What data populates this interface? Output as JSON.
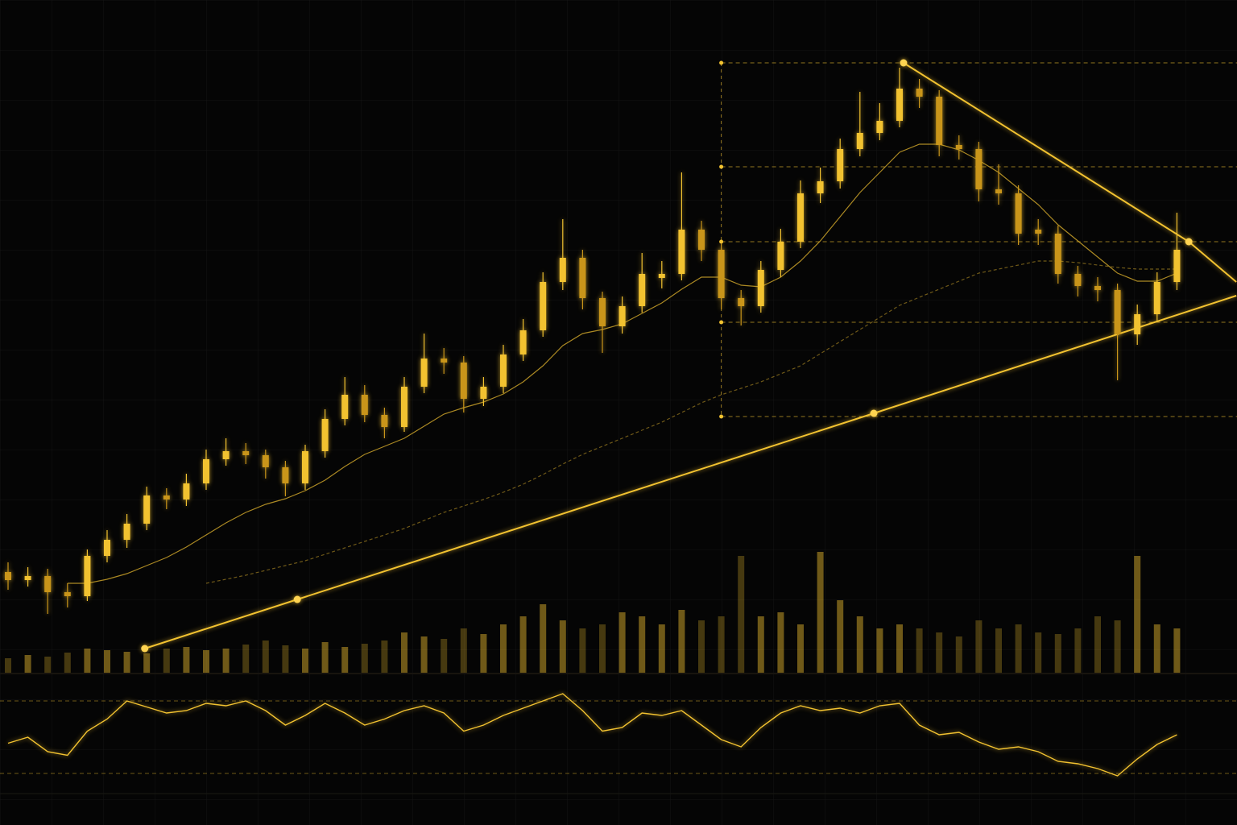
{
  "chart_data": {
    "type": "candlestick",
    "color": "#f2c230",
    "down_color": "#c9951a",
    "grid": true,
    "ylim": [
      0,
      1024
    ],
    "open": [
      314,
      304,
      309,
      289,
      284,
      334,
      354,
      374,
      409,
      404,
      424,
      454,
      464,
      459,
      444,
      424,
      464,
      504,
      534,
      509,
      494,
      544,
      579,
      574,
      529,
      544,
      584,
      614,
      674,
      704,
      654,
      619,
      644,
      679,
      684,
      739,
      714,
      654,
      644,
      689,
      724,
      784,
      799,
      839,
      859,
      874,
      914,
      904,
      844,
      839,
      789,
      784,
      739,
      734,
      684,
      669,
      664,
      609,
      634,
      674
    ],
    "high": [
      326,
      320,
      318,
      300,
      342,
      366,
      386,
      420,
      418,
      436,
      466,
      480,
      474,
      466,
      452,
      472,
      516,
      556,
      546,
      518,
      556,
      610,
      592,
      582,
      556,
      596,
      628,
      686,
      752,
      714,
      662,
      656,
      710,
      700,
      810,
      750,
      722,
      664,
      700,
      740,
      800,
      816,
      852,
      910,
      896,
      940,
      926,
      912,
      856,
      848,
      820,
      794,
      752,
      744,
      694,
      680,
      672,
      646,
      686,
      760
    ],
    "low": [
      292,
      296,
      262,
      270,
      278,
      326,
      344,
      366,
      392,
      396,
      416,
      446,
      448,
      430,
      408,
      416,
      456,
      496,
      500,
      480,
      488,
      536,
      560,
      512,
      520,
      536,
      576,
      606,
      664,
      640,
      586,
      610,
      636,
      666,
      676,
      700,
      640,
      620,
      636,
      680,
      716,
      772,
      790,
      830,
      850,
      866,
      890,
      830,
      826,
      774,
      770,
      720,
      720,
      672,
      656,
      650,
      552,
      596,
      626,
      664
    ],
    "close": [
      304,
      309,
      289,
      284,
      334,
      354,
      374,
      409,
      404,
      424,
      454,
      464,
      459,
      444,
      424,
      464,
      504,
      534,
      509,
      494,
      544,
      579,
      574,
      529,
      544,
      584,
      614,
      674,
      704,
      654,
      619,
      644,
      684,
      684,
      739,
      714,
      654,
      644,
      689,
      724,
      784,
      799,
      839,
      859,
      874,
      914,
      904,
      844,
      839,
      789,
      784,
      734,
      734,
      684,
      669,
      664,
      609,
      634,
      674,
      714
    ],
    "moving_averages": [
      {
        "style": "solid",
        "values": [
          null,
          null,
          null,
          300,
          300,
          305,
          312,
          322,
          332,
          345,
          360,
          375,
          388,
          398,
          405,
          415,
          428,
          445,
          460,
          470,
          480,
          495,
          510,
          518,
          525,
          535,
          550,
          570,
          595,
          610,
          615,
          622,
          635,
          648,
          665,
          680,
          680,
          670,
          668,
          680,
          700,
          725,
          755,
          785,
          810,
          835,
          845,
          845,
          838,
          825,
          810,
          790,
          770,
          745,
          725,
          705,
          685,
          675,
          675,
          685
        ]
      },
      {
        "style": "dashed",
        "values": [
          null,
          null,
          null,
          null,
          null,
          null,
          null,
          null,
          null,
          null,
          300,
          305,
          310,
          316,
          322,
          328,
          336,
          344,
          352,
          360,
          368,
          378,
          388,
          396,
          404,
          413,
          423,
          435,
          448,
          460,
          470,
          480,
          490,
          500,
          512,
          524,
          534,
          542,
          550,
          560,
          570,
          585,
          600,
          615,
          630,
          645,
          655,
          665,
          675,
          685,
          690,
          695,
          700,
          700,
          698,
          695,
          692,
          690,
          690,
          690
        ]
      }
    ],
    "trendlines": [
      {
        "x": [
          6.9,
          14.6,
          43.7,
          62
        ],
        "y": [
          219,
          280,
          511,
          657
        ]
      },
      {
        "x": [
          45.2,
          59.6,
          62
        ],
        "y": [
          946,
          724,
          674
        ]
      }
    ],
    "levels": [
      946,
      817,
      724,
      624,
      507
    ],
    "levels_start": 36,
    "volume": [
      18,
      22,
      20,
      25,
      30,
      28,
      26,
      24,
      30,
      32,
      28,
      30,
      35,
      40,
      34,
      30,
      38,
      32,
      36,
      40,
      50,
      45,
      42,
      55,
      48,
      60,
      70,
      85,
      65,
      55,
      60,
      75,
      70,
      60,
      78,
      65,
      70,
      145,
      70,
      75,
      60,
      150,
      90,
      70,
      55,
      60,
      55,
      50,
      45,
      65,
      55,
      60,
      50,
      48,
      55,
      70,
      65,
      145,
      60,
      55
    ],
    "volume_ylim": [
      0,
      300
    ],
    "oscillator": [
      45,
      50,
      38,
      35,
      55,
      65,
      80,
      75,
      70,
      72,
      78,
      76,
      80,
      72,
      60,
      68,
      78,
      70,
      60,
      65,
      72,
      76,
      70,
      55,
      60,
      68,
      74,
      80,
      86,
      72,
      55,
      58,
      70,
      68,
      72,
      60,
      48,
      42,
      58,
      70,
      76,
      72,
      74,
      70,
      76,
      78,
      60,
      52,
      54,
      46,
      40,
      42,
      38,
      30,
      28,
      24,
      18,
      32,
      44,
      52
    ],
    "oscillator_ylim": [
      0,
      100
    ],
    "oscillator_levels": [
      80,
      20
    ]
  }
}
